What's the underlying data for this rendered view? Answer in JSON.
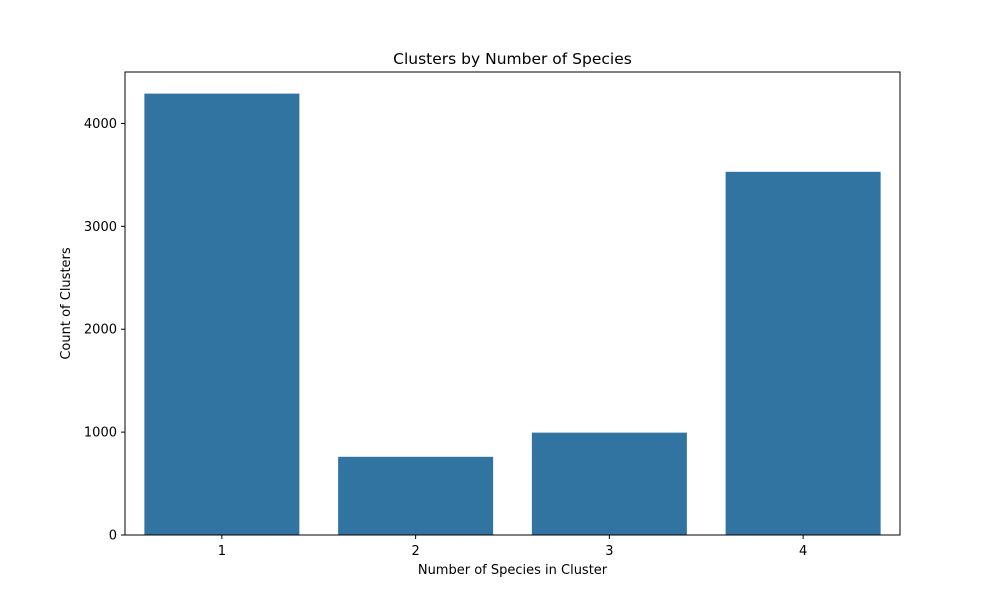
{
  "chart_data": {
    "type": "bar",
    "title": "Clusters by Number of Species",
    "xlabel": "Number of Species in Cluster",
    "ylabel": "Count of Clusters",
    "categories": [
      "1",
      "2",
      "3",
      "4"
    ],
    "values": [
      4290,
      760,
      995,
      3530
    ],
    "ylim": [
      0,
      4500
    ],
    "yticks": [
      0,
      1000,
      2000,
      3000,
      4000
    ],
    "ytick_labels": [
      "0",
      "1000",
      "2000",
      "3000",
      "4000"
    ],
    "bar_color": "#3274a1",
    "grid": false,
    "legend": "none"
  }
}
